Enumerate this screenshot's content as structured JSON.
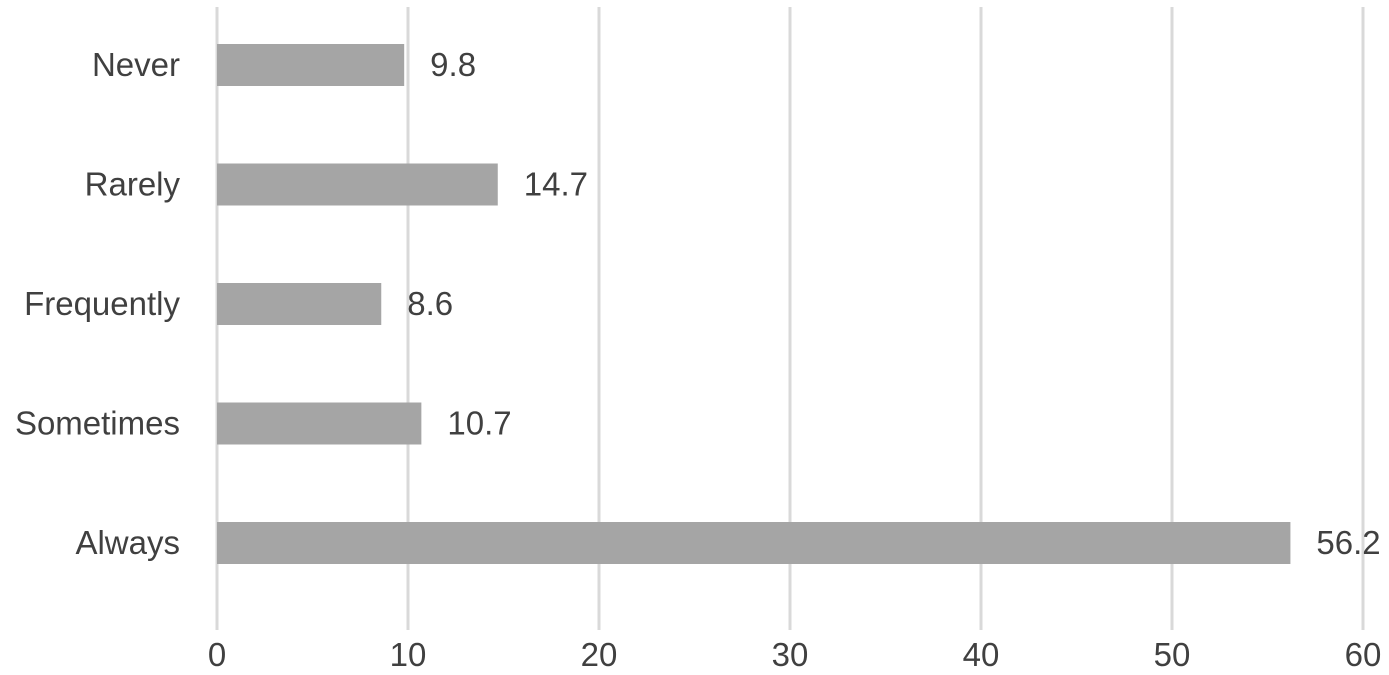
{
  "chart_data": {
    "type": "bar",
    "orientation": "horizontal",
    "categories": [
      "Never",
      "Rarely",
      "Frequently",
      "Sometimes",
      "Always"
    ],
    "values": [
      9.8,
      14.7,
      8.6,
      10.7,
      56.2
    ],
    "value_labels": [
      "9.8",
      "14.7",
      "8.6",
      "10.7",
      "56.2"
    ],
    "xlim": [
      0,
      60
    ],
    "x_ticks": [
      0,
      10,
      20,
      30,
      40,
      50,
      60
    ],
    "x_tick_labels": [
      "0",
      "10",
      "20",
      "30",
      "40",
      "50",
      "60"
    ],
    "title": "",
    "xlabel": "",
    "ylabel": "",
    "grid": "vertical",
    "legend": "none",
    "bar_color": "#a5a5a5",
    "grid_color": "#d9d9d9",
    "text_color": "#404040"
  }
}
